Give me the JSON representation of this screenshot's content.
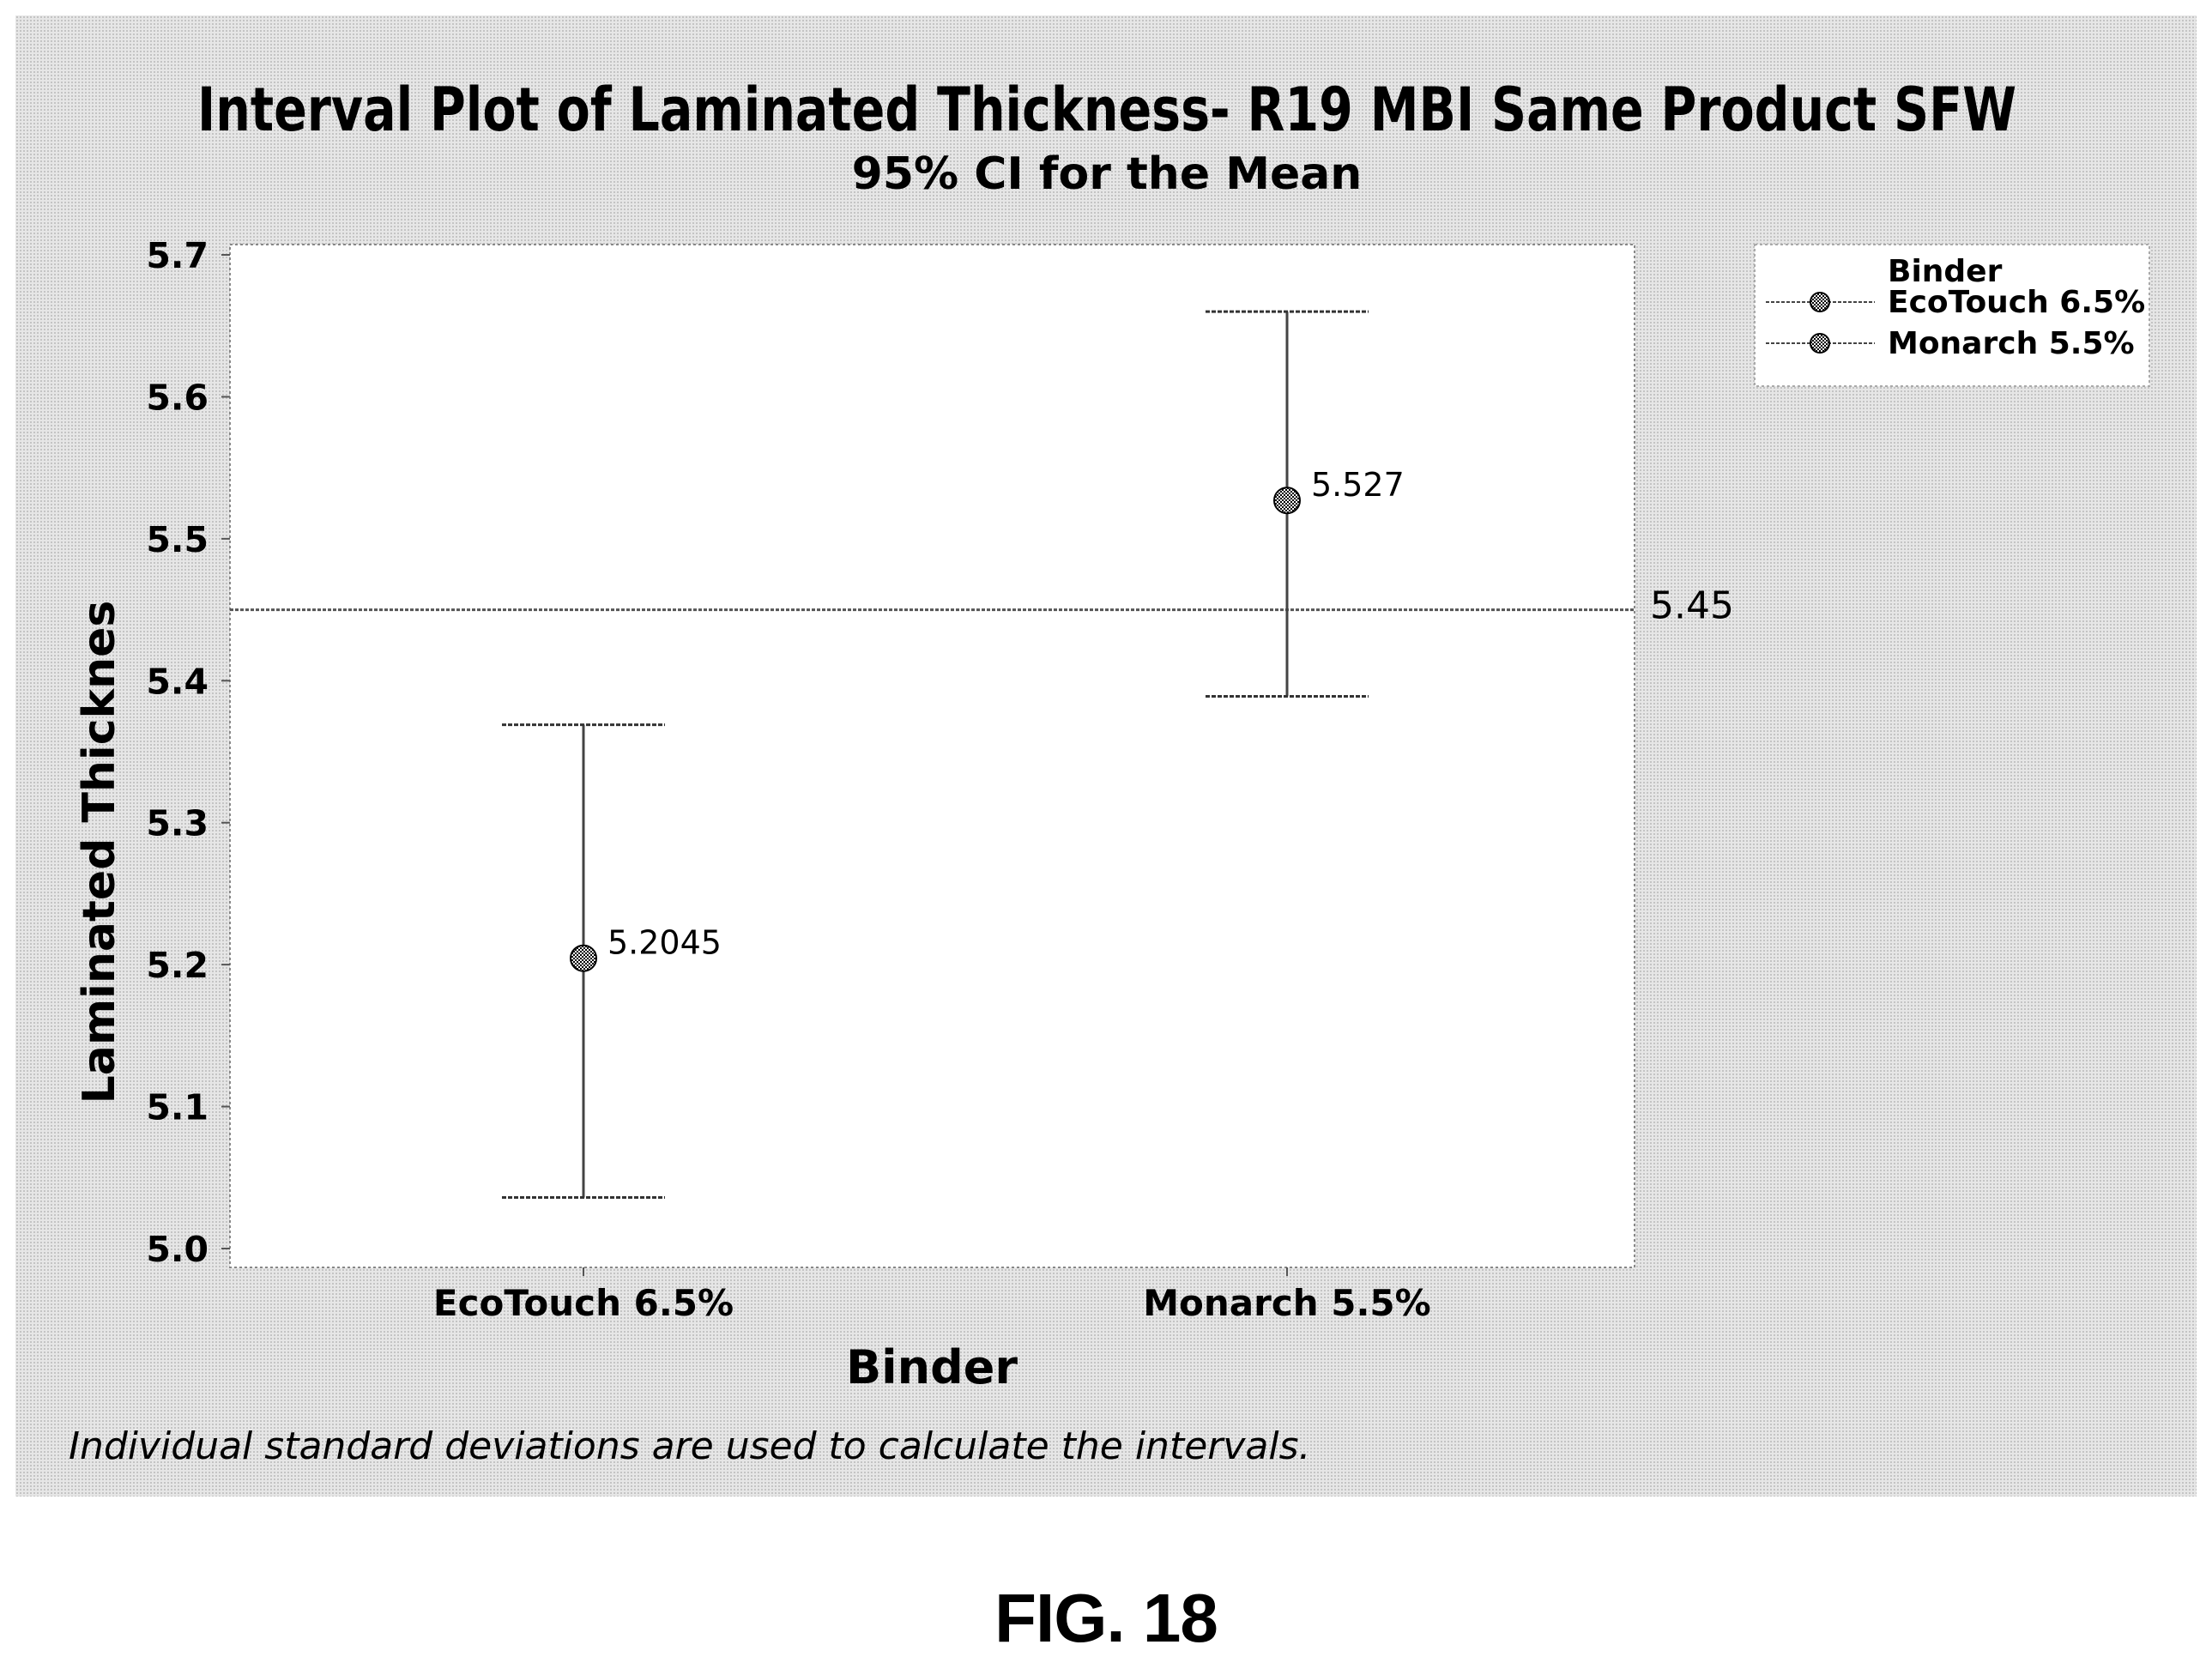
{
  "chart_data": {
    "type": "interval",
    "title": "Interval Plot of Laminated Thickness- R19 MBI Same Product SFW",
    "subtitle": "95% CI for the Mean",
    "xlabel": "Binder",
    "ylabel": "Laminated Thicknes",
    "categories": [
      "EcoTouch 6.5%",
      "Monarch 5.5%"
    ],
    "series": [
      {
        "name": "EcoTouch 6.5%",
        "mean": 5.2045,
        "ci_low": 5.036,
        "ci_high": 5.369,
        "label": "5.2045"
      },
      {
        "name": "Monarch 5.5%",
        "mean": 5.527,
        "ci_low": 5.389,
        "ci_high": 5.66,
        "label": "5.527"
      }
    ],
    "reference_line": {
      "value": 5.45,
      "label": "5.45"
    },
    "ylim": [
      5.0,
      5.7
    ],
    "yticks": [
      "5.0",
      "5.1",
      "5.2",
      "5.3",
      "5.4",
      "5.5",
      "5.6",
      "5.7"
    ],
    "legend": {
      "title": "Binder",
      "placement": "top-right",
      "items": [
        "EcoTouch 6.5%",
        "Monarch 5.5%"
      ]
    },
    "grid": false,
    "footnote": "Individual standard deviations are used to calculate the intervals."
  },
  "figure_caption": "FIG. 18"
}
